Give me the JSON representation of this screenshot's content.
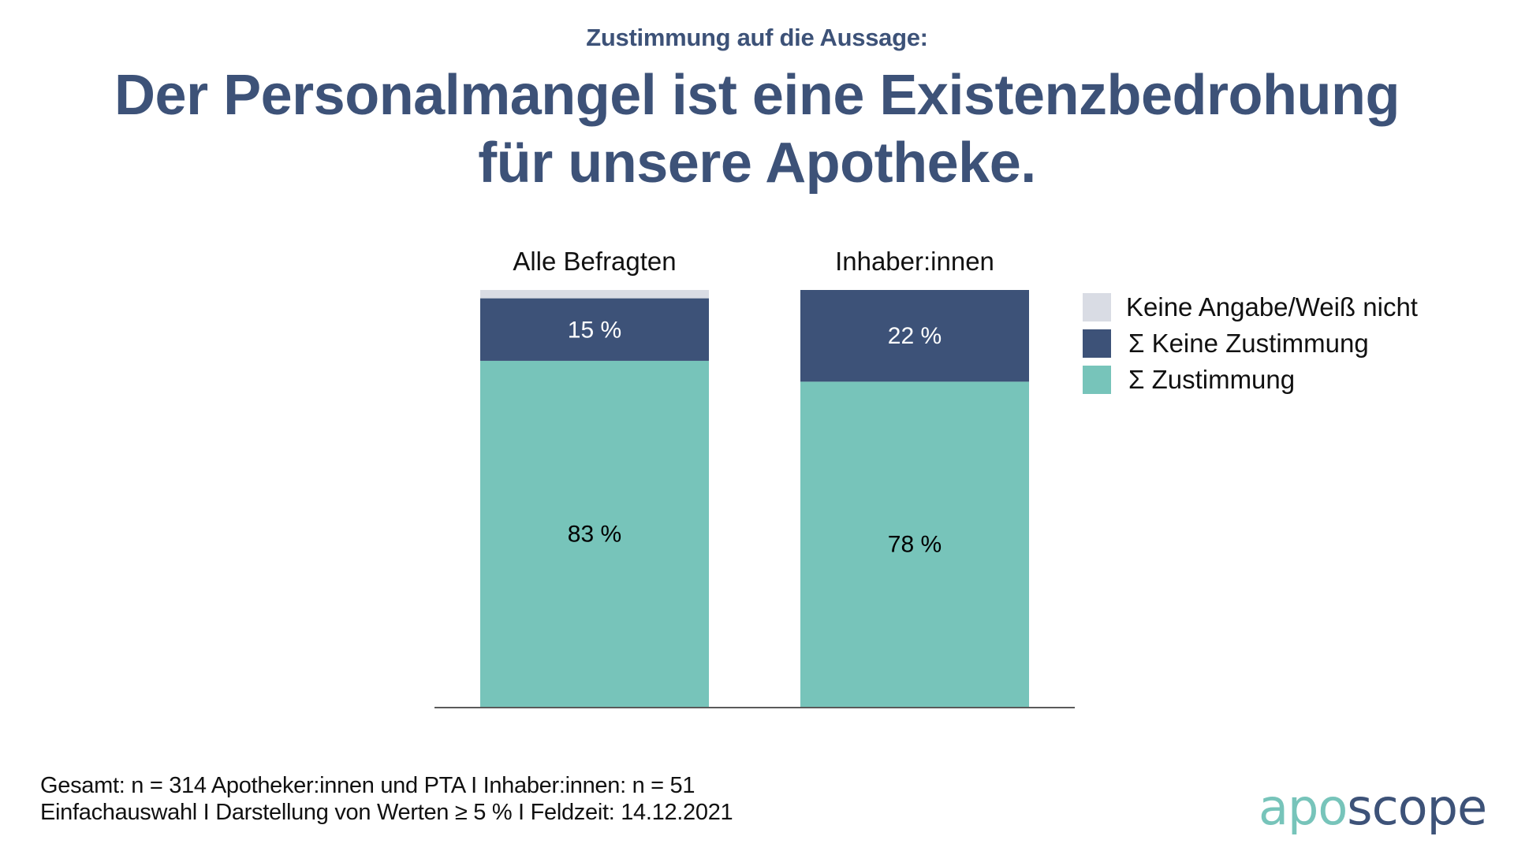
{
  "header": {
    "subtitle": "Zustimmung auf die Aussage:",
    "title_line1": "Der Personalmangel ist eine Existenzbedrohung",
    "title_line2": "für unsere Apotheke."
  },
  "colors": {
    "zustimmung": "#77c4ba",
    "keine_zustimmung": "#3d5278",
    "keine_angabe": "#d9dce4",
    "title": "#3d5278",
    "axis": "#5a5a5a"
  },
  "chart_data": {
    "type": "bar",
    "stacked": true,
    "orientation": "vertical",
    "title": "Der Personalmangel ist eine Existenzbedrohung für unsere Apotheke.",
    "subtitle": "Zustimmung auf die Aussage:",
    "categories": [
      "Alle Befragten",
      "Inhaber:innen"
    ],
    "series": [
      {
        "name": "Σ Zustimmung",
        "values": [
          83,
          78
        ],
        "labels": [
          "83 %",
          "78 %"
        ],
        "label_color": "#000000"
      },
      {
        "name": "Σ Keine Zustimmung",
        "values": [
          15,
          22
        ],
        "labels": [
          "15 %",
          "22 %"
        ],
        "label_color": "#ffffff"
      },
      {
        "name": "Keine Angabe/Weiß nicht",
        "values": [
          2,
          0
        ],
        "labels": [
          "",
          ""
        ],
        "label_color": "#000000"
      }
    ],
    "ylim": [
      0,
      100
    ],
    "unit": "%",
    "xlabel": "",
    "ylabel": "",
    "grid": false,
    "legend_position": "right"
  },
  "legend": {
    "items": [
      {
        "label": "Keine Angabe/Weiß nicht",
        "color": "#d9dce4"
      },
      {
        "label": "Σ Keine Zustimmung",
        "color": "#3d5278"
      },
      {
        "label": "Σ Zustimmung",
        "color": "#77c4ba"
      }
    ]
  },
  "footer": {
    "line1": "Gesamt: n = 314 Apotheker:innen und PTA I Inhaber:innen: n = 51",
    "line2": "Einfachauswahl I Darstellung von Werten ≥ 5 % I Feldzeit: 14.12.2021"
  },
  "logo": {
    "part1": "apo",
    "part2": "scope"
  }
}
